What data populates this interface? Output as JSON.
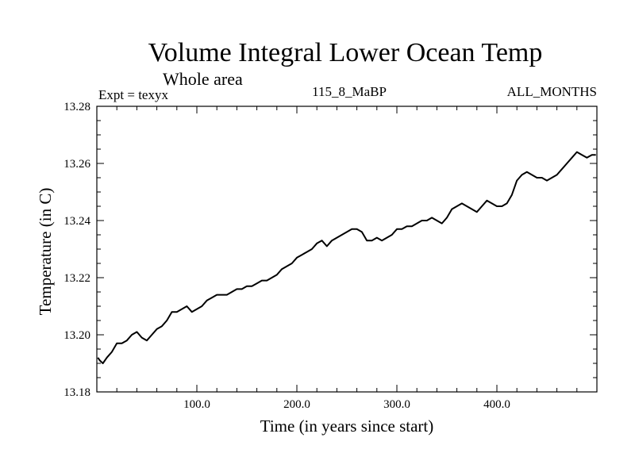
{
  "chart_data": {
    "type": "line",
    "title": "Volume Integral Lower Ocean Temp",
    "subtitle": "Whole area",
    "expt_label": "Expt = texyx",
    "run_label": "115_8_MaBP",
    "period_label": "ALL_MONTHS",
    "xlabel": "Time (in years since start)",
    "ylabel": "Temperature (in C)",
    "xlim": [
      0,
      500
    ],
    "ylim": [
      13.18,
      13.28
    ],
    "x_ticks": [
      100,
      200,
      300,
      400
    ],
    "x_tick_labels": [
      "100.0",
      "200.0",
      "300.0",
      "400.0"
    ],
    "y_ticks": [
      13.18,
      13.2,
      13.22,
      13.24,
      13.26,
      13.28
    ],
    "y_tick_labels": [
      "13.18",
      "13.20",
      "13.22",
      "13.24",
      "13.26",
      "13.28"
    ],
    "grid": false,
    "series": [
      {
        "color": "#000000",
        "x": [
          1,
          3,
          6,
          10,
          15,
          20,
          25,
          30,
          35,
          40,
          45,
          50,
          55,
          60,
          65,
          70,
          75,
          80,
          85,
          90,
          95,
          100,
          105,
          110,
          115,
          120,
          125,
          130,
          135,
          140,
          145,
          150,
          155,
          160,
          165,
          170,
          175,
          180,
          185,
          190,
          195,
          200,
          205,
          210,
          215,
          220,
          225,
          230,
          235,
          240,
          245,
          250,
          255,
          260,
          265,
          270,
          275,
          280,
          285,
          290,
          295,
          300,
          305,
          310,
          315,
          320,
          325,
          330,
          335,
          340,
          345,
          350,
          355,
          360,
          365,
          370,
          375,
          380,
          385,
          390,
          395,
          400,
          405,
          410,
          415,
          420,
          425,
          430,
          435,
          440,
          445,
          450,
          455,
          460,
          465,
          470,
          475,
          480,
          485,
          490,
          495,
          499
        ],
        "y": [
          13.192,
          13.191,
          13.19,
          13.192,
          13.194,
          13.197,
          13.197,
          13.198,
          13.2,
          13.201,
          13.199,
          13.198,
          13.2,
          13.202,
          13.203,
          13.205,
          13.208,
          13.208,
          13.209,
          13.21,
          13.208,
          13.209,
          13.21,
          13.212,
          13.213,
          13.214,
          13.214,
          13.214,
          13.215,
          13.216,
          13.216,
          13.217,
          13.217,
          13.218,
          13.219,
          13.219,
          13.22,
          13.221,
          13.223,
          13.224,
          13.225,
          13.227,
          13.228,
          13.229,
          13.23,
          13.232,
          13.233,
          13.231,
          13.233,
          13.234,
          13.235,
          13.236,
          13.237,
          13.237,
          13.236,
          13.233,
          13.233,
          13.234,
          13.233,
          13.234,
          13.235,
          13.237,
          13.237,
          13.238,
          13.238,
          13.239,
          13.24,
          13.24,
          13.241,
          13.24,
          13.239,
          13.241,
          13.244,
          13.245,
          13.246,
          13.245,
          13.244,
          13.243,
          13.245,
          13.247,
          13.246,
          13.245,
          13.245,
          13.246,
          13.249,
          13.254,
          13.256,
          13.257,
          13.256,
          13.255,
          13.255,
          13.254,
          13.255,
          13.256,
          13.258,
          13.26,
          13.262,
          13.264,
          13.263,
          13.262,
          13.263,
          13.263
        ]
      }
    ]
  }
}
